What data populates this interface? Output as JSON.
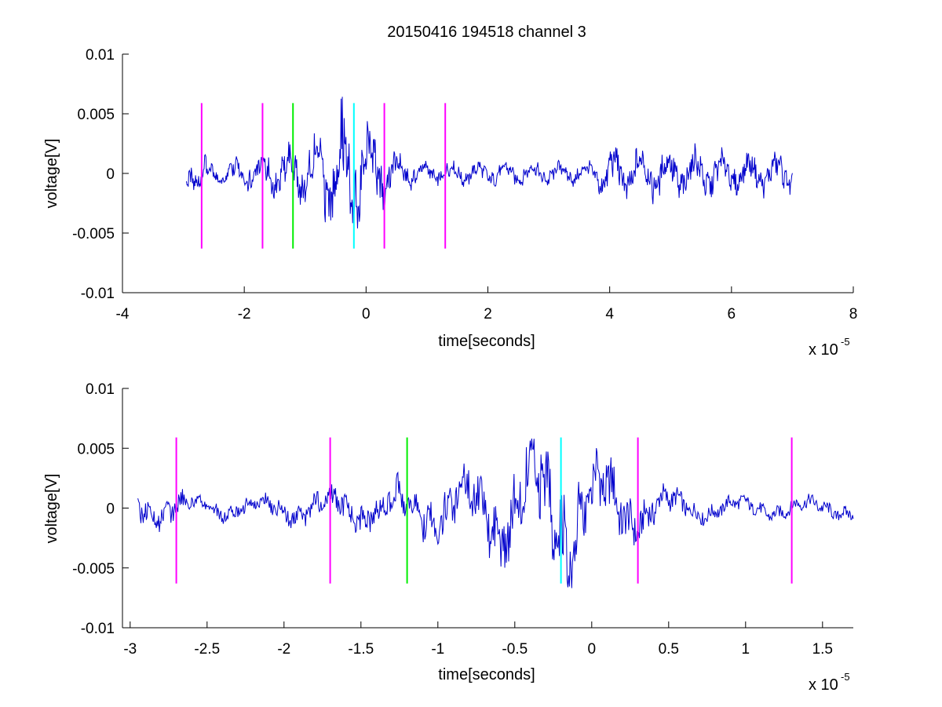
{
  "title": "20150416 194518 channel 3",
  "colors": {
    "signal": "#0000cc",
    "magenta": "#ff00ff",
    "green": "#00ee00",
    "cyan": "#00ffff",
    "axis": "#000000"
  },
  "chart_data": [
    {
      "type": "line",
      "xlabel": "time[seconds]",
      "ylabel": "voltage[V]",
      "xlim": [
        -4,
        8
      ],
      "ylim": [
        -0.01,
        0.01
      ],
      "x_unit_exponent": "x 10",
      "x_unit_power": "-5",
      "xticks": [
        -4,
        -2,
        0,
        2,
        4,
        6,
        8
      ],
      "xtick_labels": [
        "-4",
        "-2",
        "0",
        "2",
        "4",
        "6",
        "8"
      ],
      "yticks": [
        -0.01,
        -0.005,
        0,
        0.005,
        0.01
      ],
      "ytick_labels": [
        "-0.01",
        "-0.005",
        "0",
        "0.005",
        "0.01"
      ],
      "signal_range": [
        -2.95,
        7.0
      ],
      "markers": [
        {
          "x": -2.7,
          "color": "magenta",
          "ymin": -0.0063,
          "ymax": 0.0059
        },
        {
          "x": -1.7,
          "color": "magenta",
          "ymin": -0.0063,
          "ymax": 0.0059
        },
        {
          "x": -1.2,
          "color": "green",
          "ymin": -0.0063,
          "ymax": 0.0059
        },
        {
          "x": -0.2,
          "color": "cyan",
          "ymin": -0.0063,
          "ymax": 0.0059
        },
        {
          "x": 0.3,
          "color": "magenta",
          "ymin": -0.0063,
          "ymax": 0.0059
        },
        {
          "x": 1.3,
          "color": "magenta",
          "ymin": -0.0063,
          "ymax": 0.0059
        }
      ],
      "grid": false
    },
    {
      "type": "line",
      "xlabel": "time[seconds]",
      "ylabel": "voltage[V]",
      "xlim": [
        -3.05,
        1.7
      ],
      "ylim": [
        -0.01,
        0.01
      ],
      "x_unit_exponent": "x 10",
      "x_unit_power": "-5",
      "xticks": [
        -3,
        -2.5,
        -2,
        -1.5,
        -1,
        -0.5,
        0,
        0.5,
        1,
        1.5
      ],
      "xtick_labels": [
        "-3",
        "-2.5",
        "-2",
        "-1.5",
        "-1",
        "-0.5",
        "0",
        "0.5",
        "1",
        "1.5"
      ],
      "yticks": [
        -0.01,
        -0.005,
        0,
        0.005,
        0.01
      ],
      "ytick_labels": [
        "-0.01",
        "-0.005",
        "0",
        "0.005",
        "0.01"
      ],
      "signal_range": [
        -2.95,
        1.7
      ],
      "markers": [
        {
          "x": -2.7,
          "color": "magenta",
          "ymin": -0.0063,
          "ymax": 0.0059
        },
        {
          "x": -1.7,
          "color": "magenta",
          "ymin": -0.0063,
          "ymax": 0.0059
        },
        {
          "x": -1.2,
          "color": "green",
          "ymin": -0.0063,
          "ymax": 0.0059
        },
        {
          "x": -0.2,
          "color": "cyan",
          "ymin": -0.0063,
          "ymax": 0.0059
        },
        {
          "x": 0.3,
          "color": "magenta",
          "ymin": -0.0063,
          "ymax": 0.0059
        },
        {
          "x": 1.3,
          "color": "magenta",
          "ymin": -0.0063,
          "ymax": 0.0059
        }
      ],
      "grid": false
    }
  ]
}
